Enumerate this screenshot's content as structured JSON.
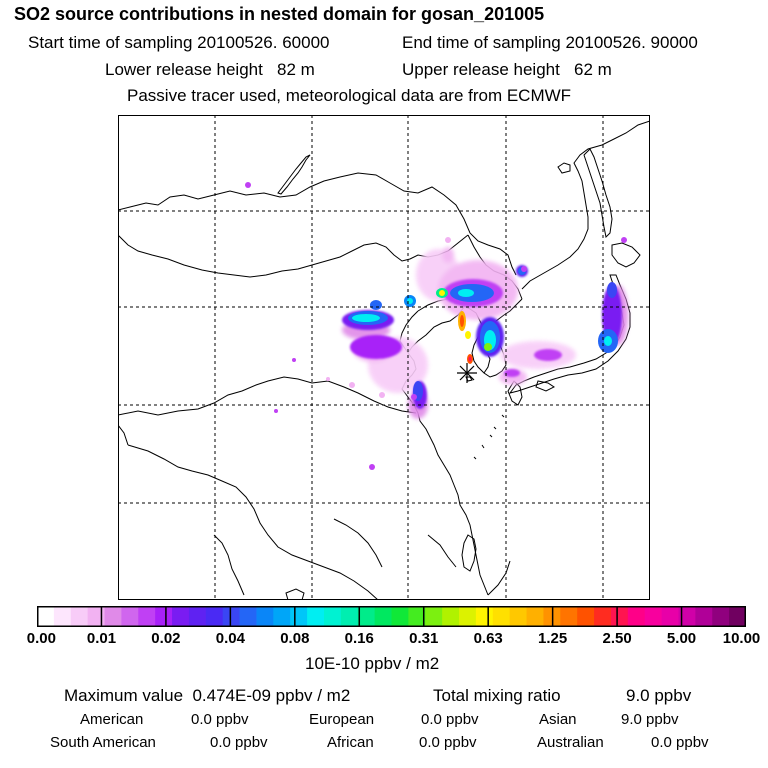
{
  "header": {
    "title": "SO2 source contributions in nested domain for gosan_201005",
    "start": "Start time of sampling 20100526. 60000",
    "end": "End time of sampling 20100526. 90000",
    "lower": "Lower release height   82 m",
    "upper": "Upper release height   62 m",
    "tracer": "Passive tracer used, meteorological data are from ECMWF"
  },
  "colorbar": {
    "ticks": [
      "0.00",
      "0.01",
      "0.02",
      "0.04",
      "0.08",
      "0.16",
      "0.31",
      "0.63",
      "1.25",
      "2.50",
      "5.00",
      "10.00"
    ],
    "colors": [
      "#ffffff",
      "#fde6fd",
      "#f8ccf8",
      "#f2b2f2",
      "#e08ae8",
      "#d066ee",
      "#c040f4",
      "#a820f8",
      "#7a1cf2",
      "#5f22f2",
      "#4a2af4",
      "#3a46f4",
      "#2466f6",
      "#0a86f8",
      "#00a6f8",
      "#00c6f8",
      "#00eef2",
      "#00f2d2",
      "#00eeb0",
      "#00ec8a",
      "#00e860",
      "#10e838",
      "#44ec20",
      "#7cf010",
      "#b0f200",
      "#dcf200",
      "#fff400",
      "#ffe000",
      "#ffc800",
      "#ffb000",
      "#ff9200",
      "#ff7400",
      "#ff5200",
      "#ff2c20",
      "#ff1450",
      "#ff0088",
      "#f8009e",
      "#e800a8",
      "#d000a8",
      "#b00098",
      "#90007e",
      "#700060"
    ],
    "units": "10E-10 ppbv / m2"
  },
  "summary": {
    "max": "Maximum value  0.474E-09 ppbv / m2",
    "total_label": "Total mixing ratio",
    "total_value": "9.0 ppbv"
  },
  "regions": [
    {
      "name": "American",
      "value": "0.0 ppbv"
    },
    {
      "name": "European",
      "value": "0.0 ppbv"
    },
    {
      "name": "Asian",
      "value": "9.0 ppbv"
    },
    {
      "name": "South American",
      "value": "0.0 ppbv"
    },
    {
      "name": "African",
      "value": "0.0 ppbv"
    },
    {
      "name": "Australian",
      "value": "0.0 ppbv"
    }
  ]
}
